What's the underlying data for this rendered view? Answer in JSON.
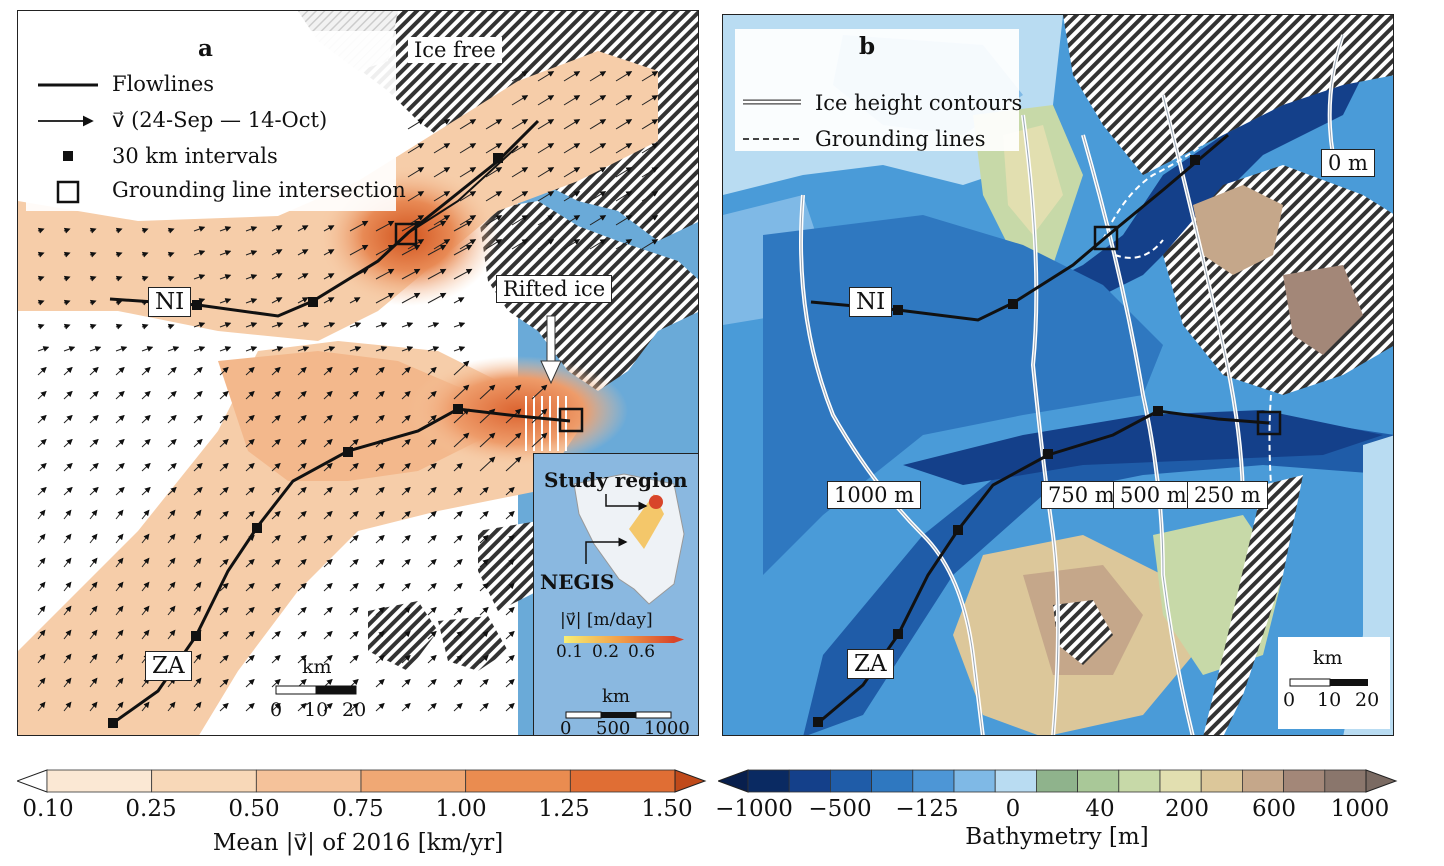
{
  "panel_a": {
    "letter": "a",
    "legend": {
      "flowlines": "Flowlines",
      "velocity": "v⃗ (24-Sep — 14-Oct)",
      "intervals": "30 km intervals",
      "grounding": "Grounding line intersection"
    },
    "ice_free": "Ice free",
    "rifted_ice": "Rifted ice",
    "ni": "NI",
    "za": "ZA",
    "scale": {
      "unit": "km",
      "t0": "0",
      "t1": "10",
      "t2": "20"
    },
    "inset": {
      "title": "Study region",
      "negis": "NEGIS",
      "vel_label": "|v⃗| [m/day]",
      "vel_ticks": [
        "0.1",
        "0.2",
        "0.6"
      ],
      "unit": "km",
      "ticks": [
        "0",
        "500",
        "1000"
      ]
    }
  },
  "panel_b": {
    "letter": "b",
    "legend": {
      "contours": "Ice height contours",
      "grounding": "Grounding lines"
    },
    "ni": "NI",
    "za": "ZA",
    "contour_labels": [
      "0 m",
      "1000 m",
      "750 m",
      "500 m",
      "250 m"
    ],
    "scale": {
      "unit": "km",
      "t0": "0",
      "t1": "10",
      "t2": "20"
    }
  },
  "colorbar_velocity": {
    "ticks": [
      "0.10",
      "0.25",
      "0.50",
      "0.75",
      "1.00",
      "1.25",
      "1.50"
    ],
    "label": "Mean |v⃗| of 2016 [km/yr]",
    "colors": [
      "#fbe8d4",
      "#f8d8b8",
      "#f5c29a",
      "#f0a874",
      "#ea8c50",
      "#e06e34"
    ],
    "under": "#ffffff",
    "over": "#c04a1a"
  },
  "colorbar_bathymetry": {
    "ticks": [
      "−1000",
      "−500",
      "−125",
      "0",
      "40",
      "200",
      "600",
      "1000"
    ],
    "label": "Bathymetry [m]",
    "colors": [
      "#0a2a62",
      "#14408a",
      "#1f5ca8",
      "#2f78c0",
      "#4d96d6",
      "#7fb9e6",
      "#b9dcf2",
      "#8fb38c",
      "#a9c898",
      "#c7d9a8",
      "#e2dfb0",
      "#dcc79a",
      "#c5a78a",
      "#a38778",
      "#8a766c"
    ],
    "under": "#081f4d",
    "over": "#7a6a62"
  }
}
